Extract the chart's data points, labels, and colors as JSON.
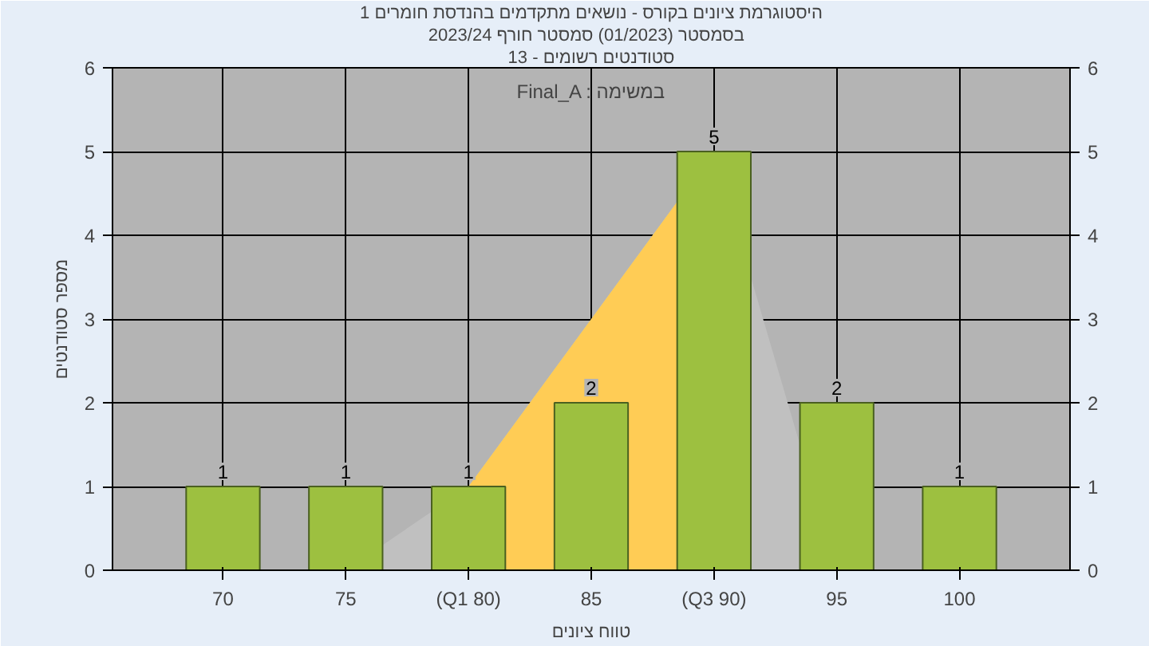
{
  "chart_data": {
    "type": "bar",
    "title": "היסטוגרמת ציונים בקורס - נושאים מתקדמים בהנדסת חומרים 1",
    "subtitle": "בסמסטר  (01/2023)  סמסטר חורף 2023/24",
    "xlabel": "טווח ציונים",
    "ylabel": "מספר סטודנטים",
    "categories": [
      "70",
      "75",
      "(Q1 80)",
      "85",
      "(Q3 90)",
      "95",
      "100"
    ],
    "series": [
      {
        "type": "area",
        "color": "#c0c0c0",
        "values": [
          null,
          0,
          1,
          3,
          5,
          0,
          null
        ]
      },
      {
        "type": "area",
        "color": "#ffcc55",
        "values": [
          null,
          null,
          1,
          3,
          5,
          null,
          null
        ]
      },
      {
        "color": "#9dc040",
        "values": [
          1,
          1,
          1,
          2,
          5,
          2,
          1
        ],
        "value_labels": [
          "1",
          "1",
          "1",
          "2",
          "5",
          "2",
          "1"
        ]
      }
    ],
    "ylim": [
      0,
      6
    ],
    "yticks": [
      0,
      1,
      2,
      3,
      4,
      5,
      6
    ],
    "y2lim": [
      0,
      6
    ],
    "y2ticks": [
      0,
      1,
      2,
      3,
      4,
      5,
      6
    ],
    "grid": true,
    "annotations": [
      "סטודנטים רשומים - 13",
      "Final_A : במשימה"
    ]
  }
}
